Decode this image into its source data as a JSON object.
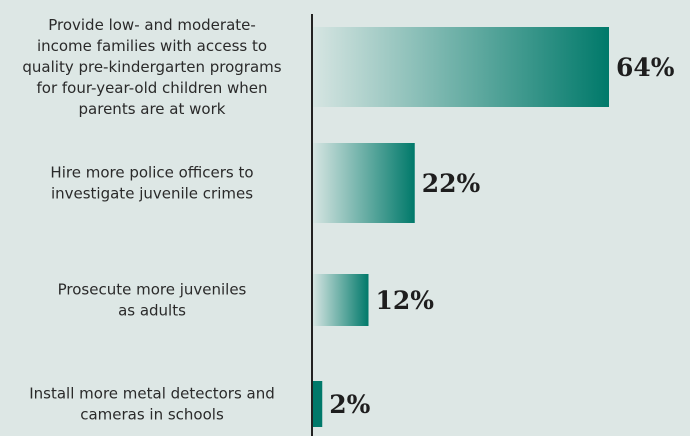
{
  "chart_data": {
    "type": "bar",
    "orientation": "horizontal",
    "categories": [
      "Provide low- and moderate-income families with access to quality pre-kindergarten programs for four-year-old children when parents are at work",
      "Hire more police officers to investigate juvenile crimes",
      "Prosecute more juveniles as adults",
      "Install more metal detectors and cameras in schools"
    ],
    "category_lines": [
      [
        "Provide low- and moderate-",
        "income families with access to",
        "quality pre-kindergarten programs",
        "for four-year-old children when",
        "parents are at work"
      ],
      [
        "Hire more police officers to",
        "investigate juvenile crimes"
      ],
      [
        "Prosecute more juveniles",
        "as adults"
      ],
      [
        "Install more metal detectors and",
        "cameras in schools"
      ]
    ],
    "values": [
      64,
      22,
      12,
      2
    ],
    "value_labels": [
      "64%",
      "22%",
      "12%",
      "2%"
    ],
    "xlim": [
      0,
      64
    ],
    "title": "",
    "xlabel": "",
    "ylabel": "",
    "grid": false,
    "legend": "none",
    "colors": {
      "background": "#dde7e5",
      "bar_dark": "#00796a",
      "bar_light": "#d6e5e2",
      "axis": "#222222"
    }
  }
}
